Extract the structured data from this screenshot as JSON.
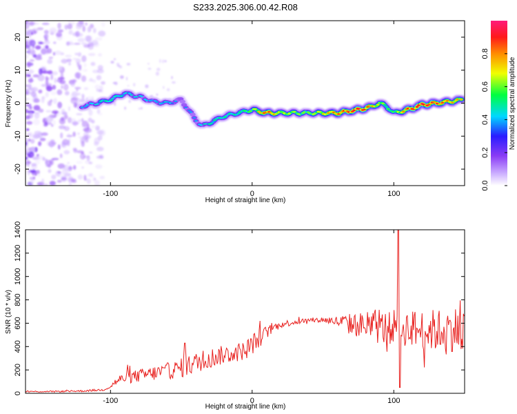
{
  "title": "S233.2025.306.00.42.R08",
  "colors": {
    "snr_line": "#e8201e",
    "frame": "#000000"
  },
  "chart_data": [
    {
      "type": "heatmap",
      "xlabel": "Height of straight line (km)",
      "ylabel": "Frequency (Hz)",
      "xlim": [
        -160,
        150
      ],
      "ylim": [
        -25,
        25
      ],
      "x_ticks": [
        -100,
        0,
        100
      ],
      "x_tick_labels": [
        "-100",
        "0",
        "100"
      ],
      "y_ticks": [
        -20,
        -10,
        0,
        10,
        20
      ],
      "y_tick_labels": [
        "-20",
        "-10",
        "0",
        "10",
        "20"
      ],
      "colorbar": {
        "label": "Normalized spectral amplitude",
        "range": [
          0,
          1
        ],
        "ticks": [
          0,
          0.2,
          0.4,
          0.6,
          0.8
        ],
        "tick_labels": [
          "0.0",
          "0.2",
          "0.4",
          "0.6",
          "0.8"
        ],
        "colormap": [
          "#ffffff",
          "#c8a8ff",
          "#8a3cf5",
          "#2a1cff",
          "#00d8ff",
          "#00ff40",
          "#f0ff00",
          "#ff8c00",
          "#ff1a1a",
          "#ff1a7a"
        ]
      },
      "ridge": {
        "x": [
          -120,
          -110,
          -100,
          -90,
          -80,
          -70,
          -60,
          -50,
          -45,
          -40,
          -35,
          -30,
          -25,
          -20,
          -10,
          0,
          10,
          20,
          40,
          60,
          75,
          80,
          85,
          90,
          95,
          100,
          110,
          120,
          130,
          140,
          148
        ],
        "freq": [
          -1,
          0,
          1,
          3,
          2,
          0.5,
          0,
          1,
          -2,
          -5,
          -7,
          -6,
          -5,
          -4,
          -3,
          -2,
          -3,
          -3,
          -3,
          -3,
          -2,
          -1.5,
          -1,
          0,
          -1,
          -3,
          -2,
          -0.5,
          0,
          0.5,
          1
        ],
        "amp": [
          0.35,
          0.4,
          0.45,
          0.4,
          0.4,
          0.35,
          0.4,
          0.3,
          0.35,
          0.35,
          0.4,
          0.45,
          0.45,
          0.45,
          0.45,
          0.55,
          0.8,
          0.6,
          0.55,
          0.75,
          0.85,
          0.8,
          0.7,
          0.6,
          0.5,
          0.5,
          0.8,
          0.85,
          0.8,
          0.7,
          0.7
        ]
      },
      "noise_region": {
        "x_range": [
          -160,
          -105
        ],
        "freq_range": [
          -25,
          25
        ]
      }
    },
    {
      "type": "line",
      "xlabel": "Height of straight line (km)",
      "ylabel": "SNR (10 * v/v)",
      "xlim": [
        -160,
        150
      ],
      "ylim": [
        0,
        1400
      ],
      "x_ticks": [
        -100,
        0,
        100
      ],
      "x_tick_labels": [
        "-100",
        "0",
        "100"
      ],
      "y_ticks": [
        0,
        200,
        400,
        600,
        800,
        1000,
        1200,
        1400
      ],
      "y_tick_labels": [
        "0",
        "200",
        "400",
        "600",
        "800",
        "1000",
        "1200",
        "1400"
      ],
      "series": [
        {
          "x": [
            -160,
            -140,
            -120,
            -105,
            -100,
            -95,
            -90,
            -80,
            -70,
            -60,
            -55,
            -50,
            -48,
            -45,
            -40,
            -30,
            -20,
            -10,
            -5,
            0,
            5,
            10,
            15,
            20,
            30,
            40,
            50,
            60,
            65,
            70,
            80,
            85,
            90,
            95,
            100,
            102,
            103,
            104,
            105,
            110,
            120,
            125,
            130,
            135,
            140,
            145,
            150
          ],
          "baseline": [
            15,
            15,
            20,
            30,
            60,
            110,
            130,
            150,
            170,
            190,
            200,
            220,
            250,
            240,
            260,
            300,
            330,
            350,
            370,
            420,
            470,
            520,
            560,
            590,
            610,
            625,
            630,
            615,
            600,
            590,
            580,
            575,
            560,
            560,
            560,
            650,
            800,
            620,
            560,
            560,
            540,
            540,
            540,
            540,
            550,
            550,
            560
          ],
          "noise": [
            8,
            8,
            10,
            12,
            25,
            50,
            60,
            70,
            80,
            90,
            95,
            100,
            150,
            110,
            110,
            110,
            100,
            100,
            100,
            110,
            100,
            70,
            50,
            40,
            30,
            25,
            30,
            60,
            100,
            120,
            150,
            170,
            180,
            180,
            180,
            250,
            400,
            250,
            200,
            200,
            220,
            220,
            230,
            230,
            240,
            250,
            250
          ]
        }
      ]
    }
  ]
}
